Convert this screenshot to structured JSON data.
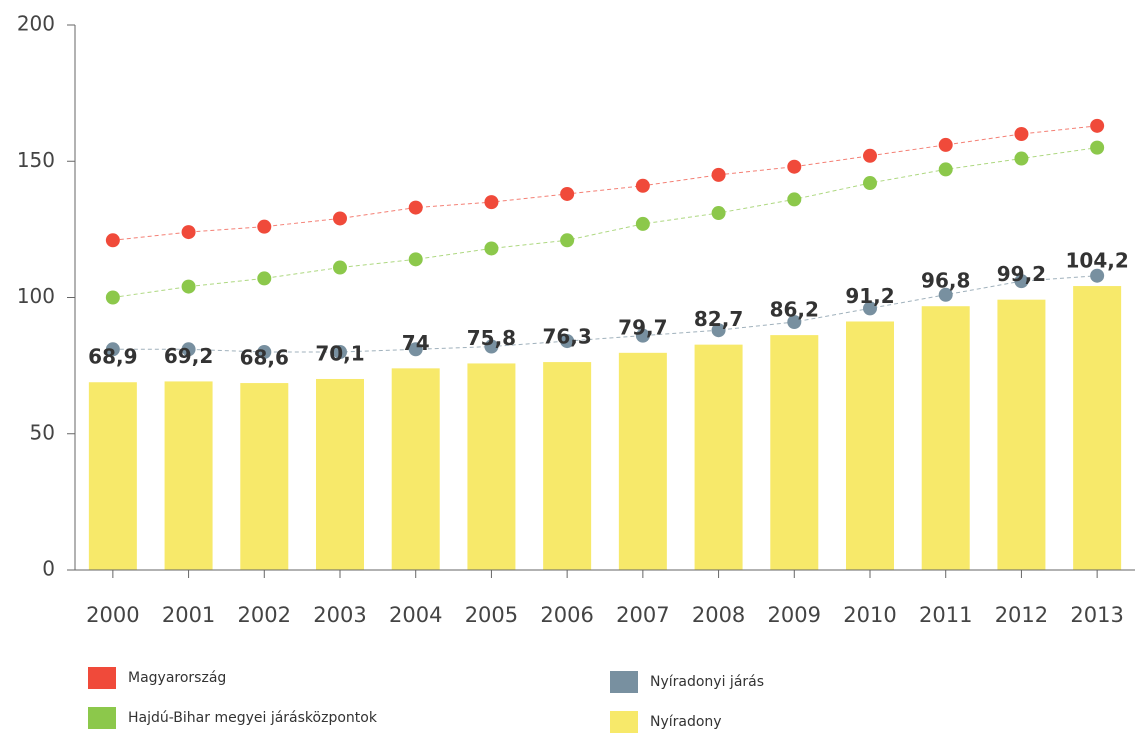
{
  "chart_data": {
    "type": "bar",
    "categories": [
      "2000",
      "2001",
      "2002",
      "2003",
      "2004",
      "2005",
      "2006",
      "2007",
      "2008",
      "2009",
      "2010",
      "2011",
      "2012",
      "2013"
    ],
    "series": [
      {
        "name": "Magyarország",
        "type": "scatter",
        "color": "#f04a3a",
        "values": [
          121,
          124,
          126,
          129,
          133,
          135,
          138,
          141,
          145,
          148,
          152,
          156,
          160,
          163
        ]
      },
      {
        "name": "Hajdú-Bihar megyei járásközpontok",
        "type": "scatter",
        "color": "#8cc84b",
        "values": [
          100,
          104,
          107,
          111,
          114,
          118,
          121,
          127,
          131,
          136,
          142,
          147,
          151,
          155
        ]
      },
      {
        "name": "Nyíradonyi járás",
        "type": "scatter",
        "color": "#7890a0",
        "values": [
          81,
          81,
          80,
          80,
          81,
          82,
          84,
          86,
          88,
          91,
          96,
          101,
          106,
          108
        ]
      },
      {
        "name": "Nyíradony",
        "type": "bar",
        "color": "#f7e96a",
        "values": [
          68.9,
          69.2,
          68.6,
          70.1,
          74,
          75.8,
          76.3,
          79.7,
          82.7,
          86.2,
          91.2,
          96.8,
          99.2,
          104.2
        ],
        "value_labels": [
          "68,9",
          "69,2",
          "68,6",
          "70,1",
          "74",
          "75,8",
          "76,3",
          "79,7",
          "82,7",
          "86,2",
          "91,2",
          "96,8",
          "99,2",
          "104,2"
        ]
      }
    ],
    "ylim": [
      0,
      200
    ],
    "yticks": [
      0,
      50,
      100,
      150,
      200
    ]
  }
}
